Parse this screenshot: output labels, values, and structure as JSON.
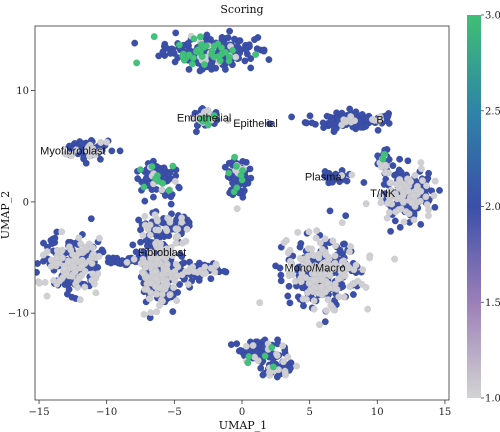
{
  "chart_data": {
    "type": "scatter",
    "title": "Scoring",
    "xlabel": "UMAP_1",
    "ylabel": "UMAP_2",
    "xlim": [
      -15.3,
      15.3
    ],
    "ylim": [
      -17.8,
      15.8
    ],
    "xticks": [
      -15,
      -10,
      -5,
      0,
      5,
      10,
      15
    ],
    "yticks": [
      -10,
      0,
      10
    ],
    "grid": false,
    "colorbar": {
      "range": [
        1.0,
        3.0
      ],
      "ticks": [
        "1.0",
        "1.5",
        "2.0",
        "2.5",
        "3.0"
      ],
      "colors": [
        "#d3d3d3",
        "#9c7fb8",
        "#3b4fa8",
        "#2f84a8",
        "#3fbf74"
      ]
    },
    "cluster_labels": [
      {
        "text": "Endothelial",
        "x": -2.8,
        "y": 7.6
      },
      {
        "text": "Epithelial",
        "x": 1.0,
        "y": 7.1
      },
      {
        "text": "B",
        "x": 10.2,
        "y": 7.4
      },
      {
        "text": "Myofibroblast",
        "x": -12.5,
        "y": 4.6
      },
      {
        "text": "Plasma",
        "x": 6.0,
        "y": 2.3
      },
      {
        "text": "T/NK",
        "x": 10.4,
        "y": 0.8
      },
      {
        "text": "Fibroblast",
        "x": -5.9,
        "y": -4.5
      },
      {
        "text": "Mono/Macro",
        "x": 5.4,
        "y": -5.9
      }
    ],
    "clusters": [
      {
        "cx": -2.5,
        "cy": 13.5,
        "sx": 2.6,
        "sy": 1.1,
        "n": 260,
        "grey": 0.08,
        "green": 0.12
      },
      {
        "cx": -2.8,
        "cy": 7.5,
        "sx": 0.9,
        "sy": 0.7,
        "n": 70,
        "grey": 0.25,
        "green": 0.08
      },
      {
        "cx": 7.6,
        "cy": 7.3,
        "sx": 2.3,
        "sy": 0.55,
        "n": 110,
        "grey": 0.08,
        "green": 0.0
      },
      {
        "cx": 10.3,
        "cy": 7.6,
        "sx": 0.35,
        "sy": 0.5,
        "n": 18,
        "grey": 0.15,
        "green": 0.0
      },
      {
        "cx": -11.5,
        "cy": 4.7,
        "sx": 1.5,
        "sy": 0.7,
        "n": 90,
        "grey": 0.25,
        "green": 0.0
      },
      {
        "cx": -6.3,
        "cy": 2.3,
        "sx": 1.3,
        "sy": 1.1,
        "n": 90,
        "grey": 0.08,
        "green": 0.06
      },
      {
        "cx": -0.3,
        "cy": 2.1,
        "sx": 0.7,
        "sy": 1.4,
        "n": 80,
        "grey": 0.1,
        "green": 0.1
      },
      {
        "cx": 7.0,
        "cy": 2.3,
        "sx": 0.9,
        "sy": 0.4,
        "n": 35,
        "grey": 0.05,
        "green": 0.0
      },
      {
        "cx": 12.2,
        "cy": 0.7,
        "sx": 1.6,
        "sy": 1.9,
        "n": 220,
        "grey": 0.35,
        "green": 0.0
      },
      {
        "cx": 10.6,
        "cy": 3.6,
        "sx": 0.4,
        "sy": 1.0,
        "n": 25,
        "grey": 0.2,
        "green": 0.1
      },
      {
        "cx": -12.5,
        "cy": -5.6,
        "sx": 1.7,
        "sy": 2.0,
        "n": 200,
        "grey": 0.45,
        "green": 0.0
      },
      {
        "cx": -9.0,
        "cy": -5.3,
        "sx": 1.8,
        "sy": 0.4,
        "n": 45,
        "grey": 0.15,
        "green": 0.0
      },
      {
        "cx": -6.0,
        "cy": -6.0,
        "sx": 1.3,
        "sy": 3.4,
        "n": 300,
        "grey": 0.4,
        "green": 0.0
      },
      {
        "cx": -3.1,
        "cy": -6.1,
        "sx": 1.3,
        "sy": 0.6,
        "n": 60,
        "grey": 0.35,
        "green": 0.0
      },
      {
        "cx": -5.6,
        "cy": -2.0,
        "sx": 1.5,
        "sy": 0.9,
        "n": 50,
        "grey": 0.35,
        "green": 0.0
      },
      {
        "cx": 6.0,
        "cy": -6.4,
        "sx": 2.3,
        "sy": 2.6,
        "n": 320,
        "grey": 0.4,
        "green": 0.0
      },
      {
        "cx": 1.5,
        "cy": -13.3,
        "sx": 1.3,
        "sy": 0.9,
        "n": 90,
        "grey": 0.15,
        "green": 0.03
      },
      {
        "cx": 2.6,
        "cy": -15.0,
        "sx": 1.0,
        "sy": 0.6,
        "n": 60,
        "grey": 0.2,
        "green": 0.08
      }
    ]
  }
}
